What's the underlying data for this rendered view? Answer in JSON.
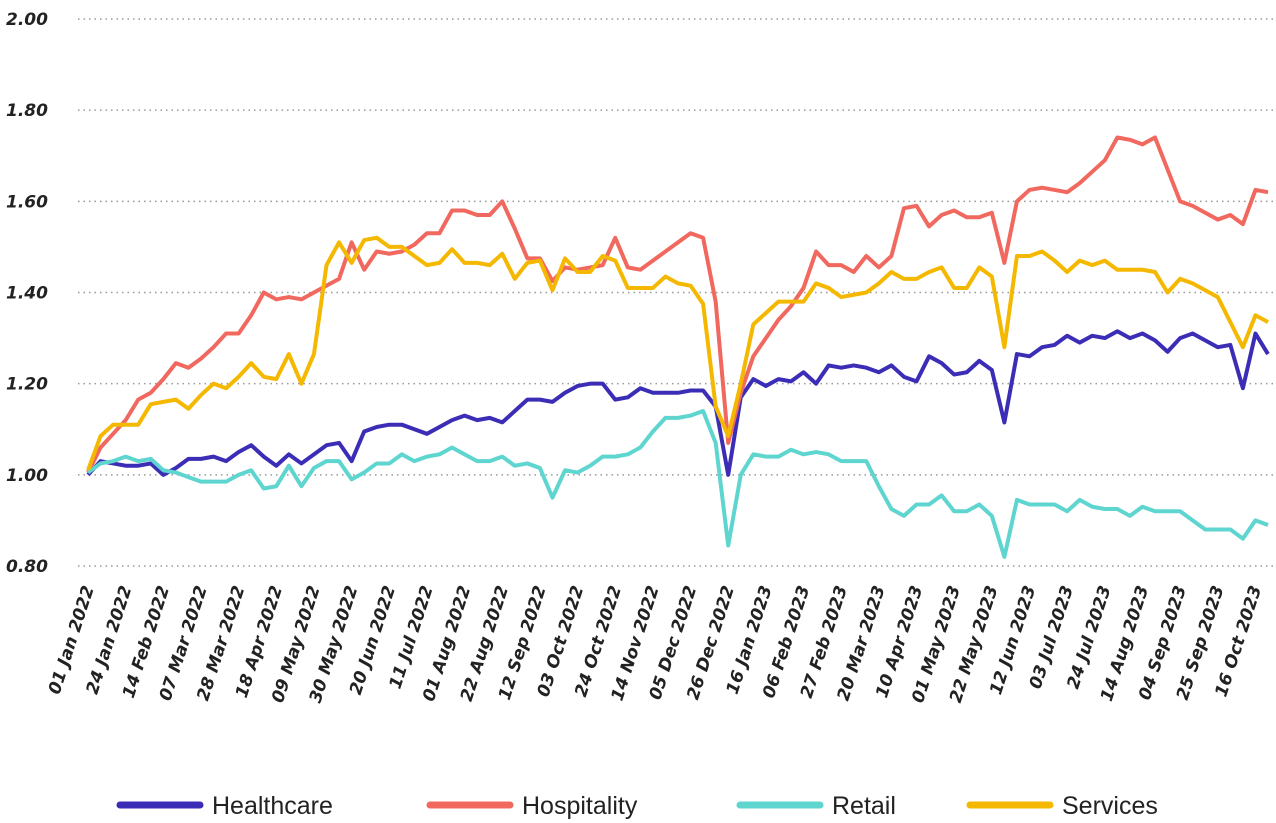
{
  "chart_data": {
    "type": "line",
    "categories": [
      "01 Jan 2022",
      null,
      null,
      "24 Jan 2022",
      null,
      null,
      "14 Feb 2022",
      null,
      null,
      "07 Mar 2022",
      null,
      null,
      "28 Mar 2022",
      null,
      null,
      "18 Apr 2022",
      null,
      null,
      "09 May 2022",
      null,
      null,
      "30 May 2022",
      null,
      null,
      "20 Jun 2022",
      null,
      null,
      "11 Jul 2022",
      null,
      null,
      "01 Aug 2022",
      null,
      null,
      "22 Aug 2022",
      null,
      null,
      "12 Sep 2022",
      null,
      null,
      "03 Oct 2022",
      null,
      null,
      "24 Oct 2022",
      null,
      null,
      "14 Nov 2022",
      null,
      null,
      "05 Dec 2022",
      null,
      null,
      "26 Dec 2022",
      null,
      null,
      "16 Jan 2023",
      null,
      null,
      "06 Feb 2023",
      null,
      null,
      "27 Feb 2023",
      null,
      null,
      "20 Mar 2023",
      null,
      null,
      "10 Apr 2023",
      null,
      null,
      "01 May 2023",
      null,
      null,
      "22 May 2023",
      null,
      null,
      "12 Jun 2023",
      null,
      null,
      "03 Jul 2023",
      null,
      null,
      "24 Jul 2023",
      null,
      null,
      "14 Aug 2023",
      null,
      null,
      "04 Sep 2023",
      null,
      null,
      "25 Sep 2023",
      null,
      null,
      "16 Oct 2023",
      null
    ],
    "series": [
      {
        "name": "Healthcare",
        "color": "#3b2db5",
        "values": [
          1.0,
          1.03,
          1.025,
          1.02,
          1.02,
          1.025,
          1.0,
          1.015,
          1.035,
          1.035,
          1.04,
          1.03,
          1.05,
          1.065,
          1.04,
          1.02,
          1.045,
          1.025,
          1.045,
          1.065,
          1.07,
          1.03,
          1.095,
          1.105,
          1.11,
          1.11,
          1.1,
          1.09,
          1.105,
          1.12,
          1.13,
          1.12,
          1.125,
          1.115,
          1.14,
          1.165,
          1.165,
          1.16,
          1.18,
          1.195,
          1.2,
          1.2,
          1.165,
          1.17,
          1.19,
          1.18,
          1.18,
          1.18,
          1.185,
          1.185,
          1.15,
          1.0,
          1.17,
          1.21,
          1.195,
          1.21,
          1.205,
          1.225,
          1.2,
          1.24,
          1.235,
          1.24,
          1.235,
          1.225,
          1.24,
          1.215,
          1.205,
          1.26,
          1.245,
          1.22,
          1.225,
          1.25,
          1.23,
          1.115,
          1.265,
          1.26,
          1.28,
          1.285,
          1.305,
          1.29,
          1.305,
          1.3,
          1.315,
          1.3,
          1.31,
          1.295,
          1.27,
          1.3,
          1.31,
          1.295,
          1.28,
          1.285,
          1.19,
          1.31,
          1.265
        ]
      },
      {
        "name": "Hospitality",
        "color": "#f0685e",
        "values": [
          1.005,
          1.06,
          1.09,
          1.12,
          1.165,
          1.18,
          1.21,
          1.245,
          1.235,
          1.255,
          1.28,
          1.31,
          1.31,
          1.35,
          1.4,
          1.385,
          1.39,
          1.385,
          1.4,
          1.415,
          1.43,
          1.51,
          1.45,
          1.49,
          1.485,
          1.49,
          1.505,
          1.53,
          1.53,
          1.58,
          1.58,
          1.57,
          1.57,
          1.6,
          1.54,
          1.475,
          1.475,
          1.425,
          1.455,
          1.45,
          1.455,
          1.46,
          1.52,
          1.455,
          1.45,
          1.47,
          1.49,
          1.51,
          1.53,
          1.52,
          1.38,
          1.07,
          1.18,
          1.26,
          1.3,
          1.34,
          1.37,
          1.41,
          1.49,
          1.46,
          1.46,
          1.445,
          1.48,
          1.455,
          1.48,
          1.585,
          1.59,
          1.545,
          1.57,
          1.58,
          1.565,
          1.565,
          1.575,
          1.465,
          1.6,
          1.625,
          1.63,
          1.625,
          1.62,
          1.64,
          1.665,
          1.69,
          1.74,
          1.735,
          1.725,
          1.74,
          1.67,
          1.6,
          1.59,
          1.575,
          1.56,
          1.57,
          1.55,
          1.625,
          1.62
        ]
      },
      {
        "name": "Retail",
        "color": "#5fd5d0",
        "values": [
          1.005,
          1.025,
          1.03,
          1.04,
          1.03,
          1.035,
          1.01,
          1.005,
          0.995,
          0.985,
          0.985,
          0.985,
          1.0,
          1.01,
          0.97,
          0.975,
          1.02,
          0.975,
          1.015,
          1.03,
          1.03,
          0.99,
          1.005,
          1.025,
          1.025,
          1.045,
          1.03,
          1.04,
          1.045,
          1.06,
          1.045,
          1.03,
          1.03,
          1.04,
          1.02,
          1.025,
          1.015,
          0.95,
          1.01,
          1.005,
          1.02,
          1.04,
          1.04,
          1.045,
          1.06,
          1.095,
          1.125,
          1.125,
          1.13,
          1.14,
          1.07,
          0.845,
          1.0,
          1.045,
          1.04,
          1.04,
          1.055,
          1.045,
          1.05,
          1.045,
          1.03,
          1.03,
          1.03,
          0.975,
          0.925,
          0.91,
          0.935,
          0.935,
          0.955,
          0.92,
          0.92,
          0.935,
          0.91,
          0.82,
          0.945,
          0.935,
          0.935,
          0.935,
          0.92,
          0.945,
          0.93,
          0.925,
          0.925,
          0.91,
          0.93,
          0.92,
          0.92,
          0.92,
          0.9,
          0.88,
          0.88,
          0.88,
          0.86,
          0.9,
          0.89
        ]
      },
      {
        "name": "Services",
        "color": "#f5b800",
        "values": [
          1.01,
          1.085,
          1.11,
          1.11,
          1.11,
          1.155,
          1.16,
          1.165,
          1.145,
          1.175,
          1.2,
          1.19,
          1.215,
          1.245,
          1.215,
          1.21,
          1.265,
          1.2,
          1.265,
          1.46,
          1.51,
          1.465,
          1.515,
          1.52,
          1.5,
          1.5,
          1.48,
          1.46,
          1.465,
          1.495,
          1.465,
          1.465,
          1.46,
          1.485,
          1.43,
          1.465,
          1.47,
          1.405,
          1.475,
          1.445,
          1.445,
          1.48,
          1.47,
          1.41,
          1.41,
          1.41,
          1.435,
          1.42,
          1.415,
          1.375,
          1.15,
          1.085,
          1.2,
          1.33,
          1.355,
          1.38,
          1.38,
          1.38,
          1.42,
          1.41,
          1.39,
          1.395,
          1.4,
          1.42,
          1.445,
          1.43,
          1.43,
          1.445,
          1.455,
          1.41,
          1.41,
          1.455,
          1.435,
          1.28,
          1.48,
          1.48,
          1.49,
          1.47,
          1.445,
          1.47,
          1.46,
          1.47,
          1.45,
          1.45,
          1.45,
          1.445,
          1.4,
          1.43,
          1.42,
          1.405,
          1.39,
          1.335,
          1.28,
          1.35,
          1.335
        ]
      }
    ],
    "ylim": [
      0.8,
      2.0
    ],
    "yticks": [
      {
        "value": 0.8,
        "label": "0.80"
      },
      {
        "value": 1.0,
        "label": "1.00"
      },
      {
        "value": 1.2,
        "label": "1.20"
      },
      {
        "value": 1.4,
        "label": "1.40"
      },
      {
        "value": 1.6,
        "label": "1.60"
      },
      {
        "value": 1.8,
        "label": "1.80"
      },
      {
        "value": 2.0,
        "label": "2.00"
      }
    ],
    "grid": true,
    "legend": "bottom"
  }
}
